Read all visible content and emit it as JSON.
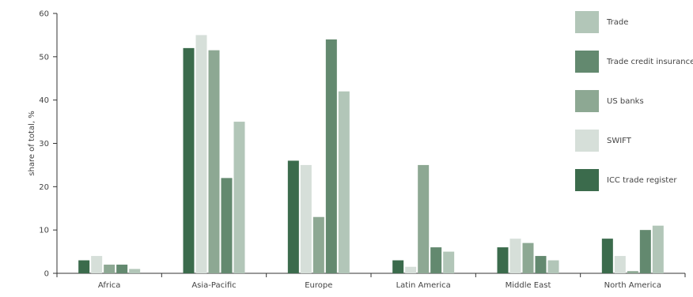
{
  "chart_data": {
    "type": "bar",
    "ylabel": "share of total, %",
    "ylim": [
      0,
      60
    ],
    "yticks": [
      0,
      10,
      20,
      30,
      40,
      50,
      60
    ],
    "grid": false,
    "legend_position": "right",
    "categories": [
      "Africa",
      "Asia-Pacific",
      "Europe",
      "Latin America",
      "Middle East",
      "North America"
    ],
    "series": [
      {
        "name": "ICC trade register",
        "color": "#3b6b4c",
        "values": [
          3,
          52,
          26,
          3,
          6,
          8
        ]
      },
      {
        "name": "SWIFT",
        "color": "#d6dfd9",
        "values": [
          4,
          55,
          25,
          1.5,
          8,
          4
        ]
      },
      {
        "name": "US banks",
        "color": "#8da893",
        "values": [
          2,
          51.5,
          13,
          25,
          7,
          0.5
        ]
      },
      {
        "name": "Trade credit insurance",
        "color": "#63896f",
        "values": [
          2,
          22,
          54,
          6,
          4,
          10
        ]
      },
      {
        "name": "Trade",
        "color": "#b2c6b8",
        "values": [
          1,
          35,
          42,
          5,
          3,
          11
        ]
      }
    ],
    "legend_order": [
      "Trade",
      "Trade credit insurance",
      "US banks",
      "SWIFT",
      "ICC trade register"
    ]
  }
}
